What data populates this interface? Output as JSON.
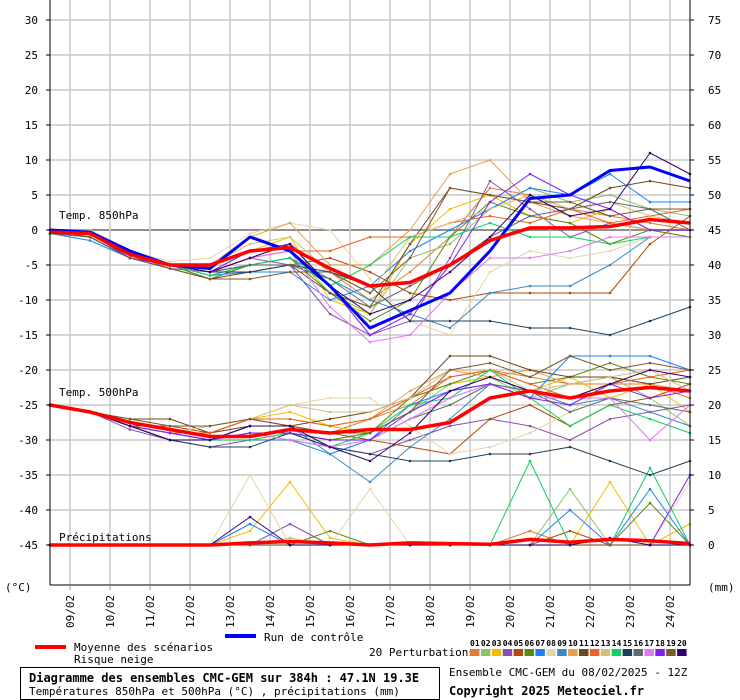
{
  "chart_data": {
    "type": "line",
    "title": "Diagramme des ensembles CMC-GEM sur 384h : 47.1N 19.3E",
    "subtitle": "Températures 850hPa et 500hPa (°C) , précipitations (mm)",
    "run_info": "Ensemble CMC-GEM du 08/02/2025 - 12Z",
    "copyright": "Copyright 2025 Meteociel.fr",
    "ylabel_left": "(°C)",
    "ylabel_right": "(mm)",
    "ylim_left": [
      -50,
      30
    ],
    "ylim_right": [
      0,
      75
    ],
    "yticks_left": [
      "30",
      "25",
      "20",
      "15",
      "10",
      "5",
      "0",
      "-5",
      "-10",
      "-15",
      "-20",
      "-25",
      "-30",
      "-35",
      "-40",
      "-45"
    ],
    "yticks_right": [
      "75",
      "70",
      "65",
      "60",
      "55",
      "50",
      "45",
      "40",
      "35",
      "30",
      "25",
      "20",
      "15",
      "10",
      "5",
      "0"
    ],
    "x_start": "08/02 12Z",
    "x_step_hours": 24,
    "xticks": [
      "09/02",
      "10/02",
      "11/02",
      "12/02",
      "13/02",
      "14/02",
      "15/02",
      "16/02",
      "17/02",
      "18/02",
      "19/02",
      "20/02",
      "21/02",
      "22/02",
      "23/02",
      "24/02"
    ],
    "grid": true,
    "section_labels": {
      "t850": "Temp. 850hPa",
      "t500": "Temp. 500hPa",
      "precip": "Précipitations"
    },
    "legend": {
      "mean": "Moyenne des scénarios",
      "snow": "Risque neige",
      "control": "Run de contrôle",
      "perturbations": "20 Perturbations"
    },
    "colors": {
      "mean": "#ff0000",
      "control": "#0000ff",
      "perturbations": [
        "#e07b30",
        "#88c46a",
        "#f0c000",
        "#8a4fb0",
        "#b04a0a",
        "#5a8a10",
        "#1a80ff",
        "#e8d4a8",
        "#3a8ac0",
        "#e8a050",
        "#6a4a1a",
        "#f06020",
        "#d4c080",
        "#10d060",
        "#20405a",
        "#606a70",
        "#e078f0",
        "#8020f0",
        "#7a5a30",
        "#300070"
      ]
    },
    "perturbation_ids": [
      "01",
      "02",
      "03",
      "04",
      "05",
      "06",
      "07",
      "08",
      "09",
      "10",
      "11",
      "12",
      "13",
      "14",
      "15",
      "16",
      "17",
      "18",
      "19",
      "20"
    ],
    "t850": {
      "mean": [
        -0.3,
        -0.5,
        -3.5,
        -5,
        -5,
        -3,
        -2.5,
        -5.5,
        -8,
        -7.5,
        -5,
        -1.5,
        0.3,
        0.3,
        0.5,
        1.5,
        1
      ],
      "control": [
        0,
        -0.3,
        -3,
        -5,
        -5.5,
        -1,
        -3,
        -8,
        -14,
        -11.5,
        -9,
        -3,
        4.5,
        5,
        8.5,
        9,
        7
      ],
      "perturbations": [
        [
          0,
          -0.5,
          -3.5,
          -5,
          -6,
          -4,
          -2,
          -6,
          -10,
          -6,
          -1,
          6,
          5,
          3,
          2,
          1,
          0
        ],
        [
          -0.5,
          -1,
          -4,
          -5,
          -6,
          -4,
          -3,
          -9,
          -12,
          -4,
          -2,
          3,
          6,
          4,
          5,
          3,
          2
        ],
        [
          0,
          -0.5,
          -3.5,
          -5,
          -6,
          -3,
          -1,
          -10,
          -12,
          -2,
          3,
          5,
          2,
          1,
          3,
          0,
          -1
        ],
        [
          0,
          -0.5,
          -3.5,
          -5.5,
          -6,
          -4,
          -5,
          -12,
          -15,
          -13,
          -4,
          7,
          3,
          -1,
          1,
          0,
          0
        ],
        [
          0,
          -1,
          -4,
          -5,
          -6,
          -5,
          -5,
          -4,
          -6,
          -9,
          -10,
          -9,
          -9,
          -9,
          -9,
          -2,
          2
        ],
        [
          0,
          -0.5,
          -3.5,
          -5,
          -7,
          -5,
          -4,
          -9,
          -13,
          -10,
          -1,
          4,
          2,
          1,
          -2,
          0,
          -1
        ],
        [
          -0.5,
          -1.5,
          -4,
          -5,
          -6.5,
          -6,
          -6,
          -10,
          -8,
          -3,
          0,
          3,
          6,
          5,
          8,
          4,
          4
        ],
        [
          0,
          0,
          -3,
          -4.5,
          -4,
          -0.5,
          1,
          0,
          -7,
          -13,
          -15,
          -6,
          -3,
          -4,
          -3,
          -1,
          -1
        ],
        [
          -0.5,
          -1,
          -4,
          -5,
          -6,
          -5,
          -4,
          -7,
          -10,
          -12,
          -14,
          -9,
          -8,
          -8,
          -5,
          -1,
          -1
        ],
        [
          0,
          -0.5,
          -3.5,
          -5,
          -5,
          -1,
          1,
          -5,
          -5,
          0,
          8,
          10,
          4,
          2,
          1,
          0,
          0
        ],
        [
          0,
          -0.5,
          -4,
          -5.5,
          -7,
          -6,
          -5,
          -9,
          -11,
          -2,
          6,
          5,
          4,
          3,
          6,
          7,
          6
        ],
        [
          0,
          -0.5,
          -3.5,
          -5,
          -6,
          -4,
          -3,
          -3,
          -1,
          -1,
          1,
          2,
          1,
          3,
          1,
          2,
          3
        ],
        [
          0,
          0,
          -3.5,
          -5,
          -5,
          -2,
          -1,
          -6,
          -9,
          -1,
          1,
          3,
          5,
          3,
          4,
          2,
          1
        ],
        [
          -0.5,
          -1,
          -4,
          -5,
          -6.5,
          -5,
          -4,
          -8,
          -5,
          -1,
          -1,
          1,
          -1,
          -1,
          -2,
          -1,
          -1
        ],
        [
          0,
          -0.5,
          -3.5,
          -5,
          -6,
          -6,
          -5,
          -6,
          -8,
          -13,
          -13,
          -13,
          -14,
          -14,
          -15,
          -13,
          -11
        ],
        [
          0,
          -1,
          -4,
          -5,
          -6,
          -5,
          -5,
          -7,
          -11,
          -8,
          -5,
          -1,
          2,
          3,
          4,
          3,
          0
        ],
        [
          0,
          -0.5,
          -3.5,
          -5,
          -6,
          -4,
          -3,
          -11,
          -16,
          -15,
          -9,
          -4,
          -4,
          -3,
          -1,
          -1,
          -1
        ],
        [
          0,
          -0.5,
          -4,
          -5,
          -6,
          -3,
          -2,
          -8,
          -15,
          -12,
          -5,
          4,
          8,
          5,
          3,
          0,
          0
        ],
        [
          -0.5,
          -1,
          -4,
          -5.5,
          -7,
          -7,
          -6,
          -6,
          -9,
          -4,
          6,
          5,
          4,
          4,
          2,
          3,
          3
        ],
        [
          0,
          -0.5,
          -3.5,
          -5,
          -6,
          -4,
          -2,
          -8,
          -12,
          -10,
          -6,
          -1,
          5,
          2,
          3,
          11,
          8
        ]
      ]
    },
    "t500": {
      "mean": [
        -25,
        -26,
        -27.5,
        -28.5,
        -29.5,
        -29.5,
        -28.5,
        -29,
        -28.5,
        -28.5,
        -27.5,
        -24,
        -23,
        -24,
        -23,
        -22.5,
        -23
      ],
      "perturbations": [
        [
          -25,
          -26,
          -28,
          -29,
          -30,
          -28,
          -28,
          -29,
          -27,
          -25,
          -21,
          -20,
          -21,
          -22,
          -22,
          -22,
          -24
        ],
        [
          -25,
          -26,
          -28,
          -29,
          -30,
          -30,
          -29,
          -30,
          -29,
          -26,
          -22,
          -21,
          -24,
          -22,
          -21,
          -24,
          -28
        ],
        [
          -25,
          -26,
          -28,
          -29,
          -29,
          -27,
          -26,
          -28,
          -29,
          -24,
          -22,
          -21,
          -23,
          -21,
          -24,
          -22,
          -26
        ],
        [
          -25,
          -26,
          -28.5,
          -30,
          -31,
          -30,
          -30,
          -31,
          -32,
          -30,
          -28,
          -27,
          -28,
          -30,
          -27,
          -26,
          -25
        ],
        [
          -25,
          -26,
          -28,
          -28,
          -29,
          -27,
          -28,
          -29,
          -30,
          -31,
          -32,
          -27,
          -25,
          -28,
          -25,
          -24,
          -22
        ],
        [
          -25,
          -26,
          -28,
          -30,
          -30,
          -29,
          -29,
          -30,
          -29,
          -24,
          -22,
          -20,
          -22,
          -21,
          -19,
          -21,
          -22
        ],
        [
          -25,
          -26,
          -28,
          -29,
          -30,
          -28,
          -28,
          -32,
          -30,
          -25,
          -23,
          -22,
          -24,
          -18,
          -18,
          -18,
          -20
        ],
        [
          -25,
          -26,
          -27,
          -28,
          -28,
          -27,
          -25,
          -24,
          -24,
          -28,
          -32,
          -31,
          -29,
          -26,
          -22,
          -21,
          -20
        ],
        [
          -25,
          -26,
          -28,
          -29,
          -30,
          -30,
          -30,
          -32,
          -36,
          -31,
          -27,
          -22,
          -23,
          -25,
          -24,
          -26,
          -28
        ],
        [
          -25,
          -26,
          -28,
          -29,
          -29,
          -27,
          -27,
          -28,
          -27,
          -23,
          -20,
          -21,
          -20,
          -22,
          -21,
          -22,
          -23
        ],
        [
          -25,
          -26,
          -27,
          -27,
          -29,
          -28,
          -28,
          -27,
          -26,
          -24,
          -18,
          -18,
          -20,
          -21,
          -21,
          -22,
          -21
        ],
        [
          -25,
          -26,
          -28,
          -29,
          -29,
          -27,
          -27,
          -28,
          -27,
          -24,
          -21,
          -20,
          -22,
          -24,
          -22,
          -21,
          -20
        ],
        [
          -25,
          -26,
          -28,
          -29,
          -28,
          -27,
          -25,
          -26,
          -26,
          -24,
          -20,
          -20,
          -23,
          -22,
          -21,
          -20,
          -23
        ],
        [
          -25,
          -26,
          -28,
          -29,
          -30,
          -30,
          -29,
          -31,
          -29,
          -25,
          -24,
          -20,
          -24,
          -28,
          -25,
          -27,
          -29
        ],
        [
          -25,
          -26,
          -28,
          -30,
          -31,
          -31,
          -29,
          -31,
          -32,
          -33,
          -33,
          -32,
          -32,
          -31,
          -33,
          -35,
          -33
        ],
        [
          -25,
          -26,
          -28,
          -29,
          -30,
          -29,
          -29,
          -30,
          -30,
          -27,
          -25,
          -22,
          -23,
          -26,
          -24,
          -25,
          -26
        ],
        [
          -25,
          -26,
          -28,
          -29,
          -30,
          -29,
          -30,
          -31,
          -30,
          -27,
          -24,
          -22,
          -24,
          -24,
          -24,
          -30,
          -25
        ],
        [
          -25,
          -26,
          -28,
          -29,
          -30,
          -29,
          -29,
          -30,
          -30,
          -26,
          -23,
          -22,
          -24,
          -25,
          -22,
          -24,
          -23
        ],
        [
          -25,
          -26,
          -27,
          -28,
          -28,
          -27,
          -28,
          -29,
          -29,
          -26,
          -20,
          -19,
          -21,
          -18,
          -20,
          -19,
          -20
        ],
        [
          -25,
          -26,
          -28,
          -30,
          -30,
          -28,
          -28,
          -31,
          -33,
          -29,
          -23,
          -21,
          -23,
          -24,
          -22,
          -20,
          -21
        ]
      ]
    },
    "precip": {
      "mean": [
        0,
        0,
        0,
        0,
        0,
        0.3,
        0.5,
        0.3,
        0,
        0.3,
        0.2,
        0.1,
        0.8,
        0.4,
        0.8,
        0.6,
        0.2
      ],
      "perturbations": [
        [
          0,
          0,
          0,
          0,
          0,
          0,
          1,
          0,
          0,
          0,
          0,
          0,
          2,
          0,
          0,
          0,
          0
        ],
        [
          0,
          0,
          0,
          0,
          0,
          0,
          0,
          0,
          0,
          0,
          0,
          0,
          0,
          8,
          0,
          0,
          0
        ],
        [
          0,
          0,
          0,
          0,
          0,
          2,
          9,
          1,
          0,
          0,
          0,
          0,
          0,
          0,
          9,
          0,
          3
        ],
        [
          0,
          0,
          0,
          0,
          0,
          0,
          3,
          0,
          0,
          0,
          0,
          0,
          0,
          0,
          0,
          0,
          0
        ],
        [
          0,
          0,
          0,
          0,
          0,
          0,
          0,
          0,
          0,
          0,
          0,
          0,
          0,
          2,
          0,
          0,
          0
        ],
        [
          0,
          0,
          0,
          0,
          0,
          0,
          0,
          2,
          0,
          0,
          0,
          0,
          0,
          0,
          0,
          6,
          0
        ],
        [
          0,
          0,
          0,
          0,
          0,
          3,
          0,
          0,
          0,
          0,
          0,
          0,
          0,
          5,
          0,
          8,
          0
        ],
        [
          0,
          0,
          0,
          0,
          0,
          10,
          0,
          0,
          8,
          0,
          0,
          0,
          0,
          0,
          0,
          0,
          9
        ],
        [
          0,
          0,
          0,
          0,
          0,
          0,
          0,
          0,
          0,
          0,
          0,
          0,
          0,
          0,
          0,
          0,
          0
        ],
        [
          0,
          0,
          0,
          0,
          0,
          0,
          0,
          0,
          0,
          0,
          0,
          0,
          0,
          0,
          0,
          0,
          0
        ],
        [
          0,
          0,
          0,
          0,
          0,
          0,
          0,
          0,
          0,
          0,
          0,
          0,
          0,
          0,
          0,
          0,
          0
        ],
        [
          0,
          0,
          0,
          0,
          0,
          0,
          0,
          0,
          0,
          0,
          0,
          0,
          0,
          0,
          0,
          0,
          0
        ],
        [
          0,
          0,
          0,
          0,
          0,
          0,
          1,
          0,
          0,
          0,
          0,
          0,
          0,
          0,
          0,
          0,
          0
        ],
        [
          0,
          0,
          0,
          0,
          0,
          0,
          0,
          0,
          0,
          0,
          0,
          0,
          12,
          0,
          0,
          11,
          0
        ],
        [
          0,
          0,
          0,
          0,
          0,
          0,
          0,
          0,
          0,
          0,
          0,
          0,
          0,
          0,
          0,
          0,
          0
        ],
        [
          0,
          0,
          0,
          0,
          0,
          0,
          0,
          0,
          0,
          0,
          0,
          0,
          0,
          0,
          0,
          0,
          0
        ],
        [
          0,
          0,
          0,
          0,
          0,
          0,
          0,
          0,
          0,
          0,
          0,
          0,
          0,
          0,
          0,
          0,
          0
        ],
        [
          0,
          0,
          0,
          0,
          0,
          0,
          0,
          0,
          0,
          0,
          0,
          0,
          0,
          0,
          0,
          0,
          10
        ],
        [
          0,
          0,
          0,
          0,
          0,
          0,
          0,
          0,
          0,
          0,
          0,
          0,
          0,
          0,
          0,
          0,
          0
        ],
        [
          0,
          0,
          0,
          0,
          0,
          4,
          0,
          0,
          0,
          0,
          0,
          0,
          0,
          0,
          1,
          0,
          0
        ]
      ]
    }
  }
}
